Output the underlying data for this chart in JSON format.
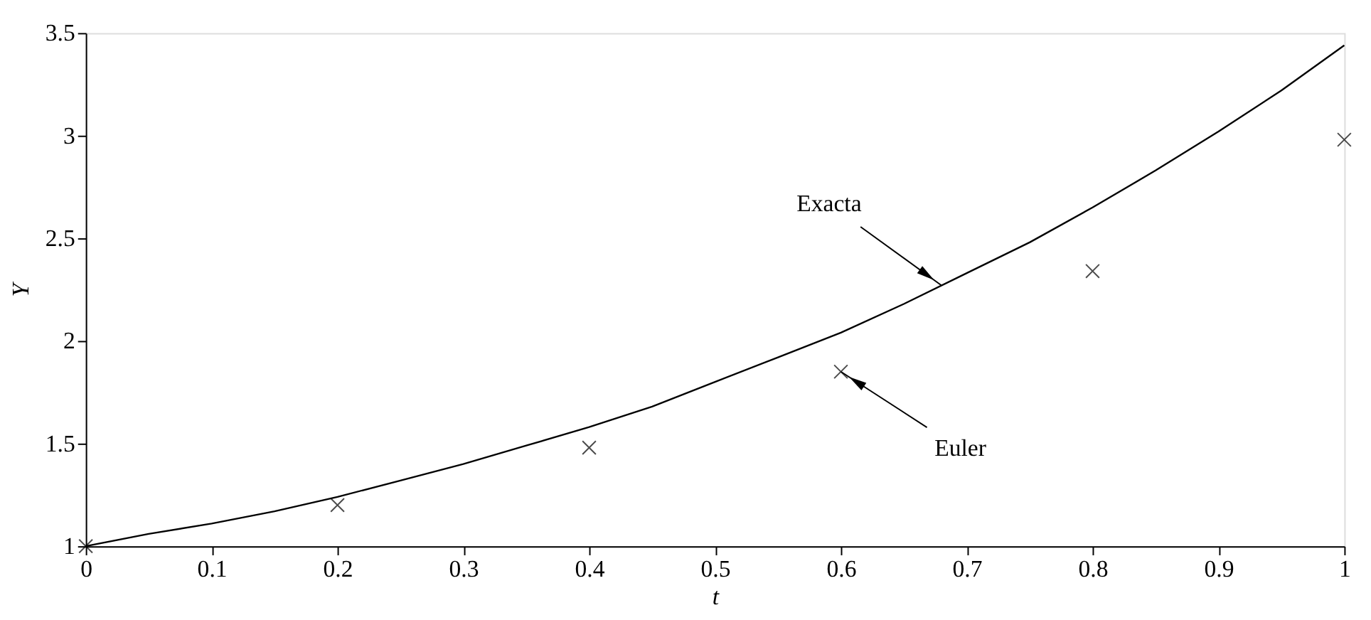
{
  "chart_data": {
    "type": "line",
    "xlabel": "t",
    "ylabel": "Y",
    "xlim": [
      0,
      1
    ],
    "xticks": [
      0,
      0.1,
      0.2,
      0.3,
      0.4,
      0.5,
      0.6,
      0.7,
      0.8,
      0.9,
      1
    ],
    "ylim": [
      1,
      3.5
    ],
    "yticks": [
      1,
      1.5,
      2,
      2.5,
      3,
      3.5
    ],
    "series": [
      {
        "color": "#000000",
        "line_style": "solid",
        "x": [
          0,
          0.05,
          0.1,
          0.15,
          0.2,
          0.25,
          0.3,
          0.35,
          0.4,
          0.45,
          0.5,
          0.55,
          0.6,
          0.65,
          0.7,
          0.75,
          0.8,
          0.85,
          0.9,
          0.95,
          1
        ],
        "values": [
          1,
          1.06,
          1.11,
          1.17,
          1.24,
          1.32,
          1.4,
          1.49,
          1.58,
          1.68,
          1.8,
          1.92,
          2.04,
          2.18,
          2.33,
          2.48,
          2.65,
          2.83,
          3.02,
          3.22,
          3.44
        ]
      },
      {
        "type": "scatter",
        "color": "#000000",
        "marker": "cross",
        "x": [
          0,
          0.2,
          0.4,
          0.6,
          0.8,
          1
        ],
        "values": [
          1,
          1.2,
          1.48,
          1.85,
          2.34,
          2.98
        ]
      }
    ],
    "annotations": [
      {
        "text": "Exacta",
        "x": 0.68,
        "y": 2.27
      },
      {
        "text": "Euler",
        "x": 0.6,
        "y": 1.85
      }
    ]
  }
}
